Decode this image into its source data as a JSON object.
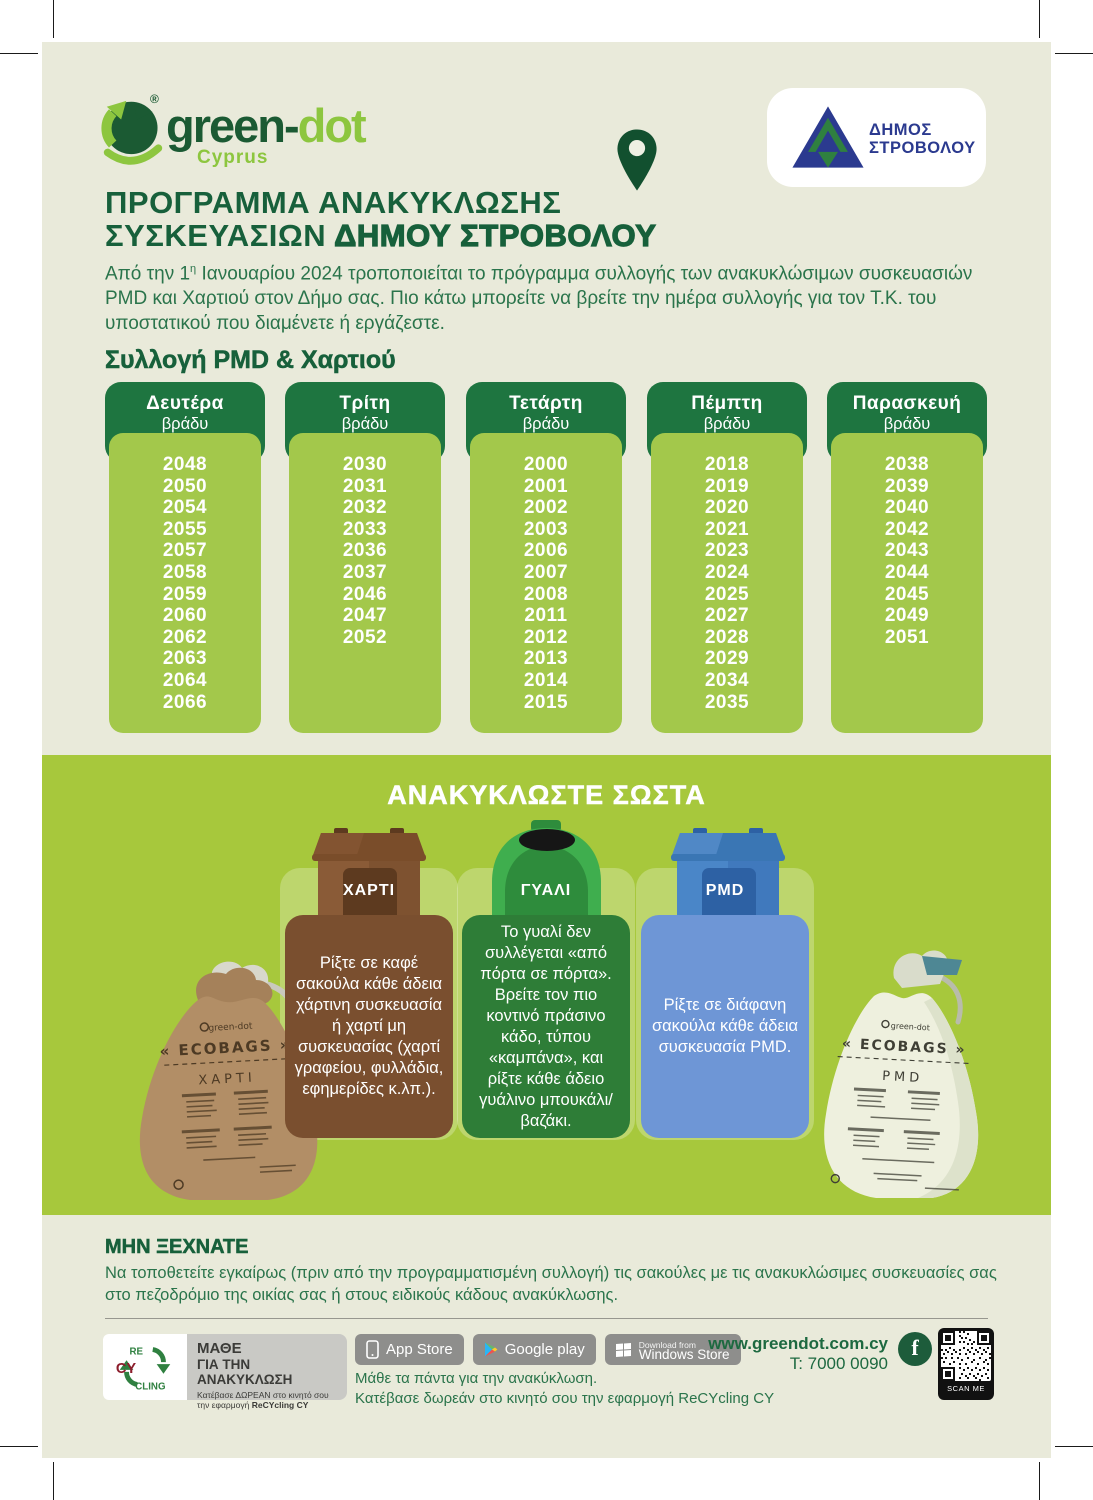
{
  "brand": {
    "word_dark": "green-",
    "word_light": "dot",
    "region": "Cyprus",
    "registered": "®"
  },
  "municipality": {
    "line1": "ΔΗΜΟΣ",
    "line2": "ΣΤΡΟΒΟΛΟΥ"
  },
  "header": {
    "title_line1": "ΠΡΟΓΡΑΜΜΑ ΑΝΑΚΥΚΛΩΣΗΣ",
    "title_line2_prefix": "ΣΥΣΚΕΥΑΣΙΩΝ ",
    "title_line2_bold": "ΔΗΜΟΥ ΣΤΡΟΒΟΛΟΥ",
    "intro_prefix": "Από την 1",
    "intro_sup": "η",
    "intro_rest": " Ιανουαρίου 2024 τροποποιείται το πρόγραμμα συλλογής των ανακυκλώσιμων συσκευασιών PMD και Χαρτιού στον Δήμο σας. Πιο κάτω μπορείτε να βρείτε την ημέρα συλλογής για τον Τ.Κ. του υποστατικού που διαμένετε ή εργάζεστε."
  },
  "schedule": {
    "heading": "Συλλογή PMD & Χαρτιού",
    "columns": [
      {
        "day": "Δευτέρα",
        "time": "βράδυ",
        "codes": [
          "2048",
          "2050",
          "2054",
          "2055",
          "2057",
          "2058",
          "2059",
          "2060",
          "2062",
          "2063",
          "2064",
          "2066"
        ]
      },
      {
        "day": "Τρίτη",
        "time": "βράδυ",
        "codes": [
          "2030",
          "2031",
          "2032",
          "2033",
          "2036",
          "2037",
          "2046",
          "2047",
          "2052"
        ]
      },
      {
        "day": "Τετάρτη",
        "time": "βράδυ",
        "codes": [
          "2000",
          "2001",
          "2002",
          "2003",
          "2006",
          "2007",
          "2008",
          "2011",
          "2012",
          "2013",
          "2014",
          "2015"
        ]
      },
      {
        "day": "Πέμπτη",
        "time": "βράδυ",
        "codes": [
          "2018",
          "2019",
          "2020",
          "2021",
          "2023",
          "2024",
          "2025",
          "2027",
          "2028",
          "2029",
          "2034",
          "2035"
        ]
      },
      {
        "day": "Παρασκευή",
        "time": "βράδυ",
        "codes": [
          "2038",
          "2039",
          "2040",
          "2042",
          "2043",
          "2044",
          "2045",
          "2049",
          "2051"
        ]
      }
    ]
  },
  "recycle": {
    "heading": "ΑΝΑΚΥΚΛΩΣΤΕ ΣΩΣΤΑ",
    "bins": [
      {
        "label": "ΧΑΡΤΙ",
        "text": "Ρίξτε σε καφέ σακούλα κάθε άδεια χάρτινη συσκευασία ή χαρτί μη συσκευασίας (χαρτί γραφείου, φυλλάδια, εφημερίδες κ.λπ.)."
      },
      {
        "label": "ΓΥΑΛΙ",
        "text": "Το γυαλί δεν συλλέγεται «από πόρτα σε πόρτα». Βρείτε τον πιο κοντινό πράσινο κάδο, τύπου «καμπάνα», και ρίξτε κάθε άδειο γυάλινο μπουκάλι/βαζάκι."
      },
      {
        "label": "PMD",
        "text": "Ρίξτε σε διάφανη σακούλα κάθε άδεια συσκευασία PMD."
      }
    ],
    "bags": [
      {
        "brand": "green-dot",
        "title": "« ECOBAGS »",
        "subtitle": "ΧΑΡΤΙ"
      },
      {
        "brand": "green-dot",
        "title": "« ECOBAGS »",
        "subtitle": "PMD"
      }
    ]
  },
  "reminder": {
    "heading": "ΜΗΝ ΞΕΧΝΑΤΕ",
    "text": "Να τοποθετείτε εγκαίρως (πριν από την προγραμματισμένη συλλογή) τις σακούλες με τις ανακυκλώσιμες συσκευασίες σας στο πεζοδρόμιο της οικίας σας ή στους ειδικούς κάδους ανακύκλωσης."
  },
  "footer": {
    "recycling_logo": {
      "re": "RE",
      "cy": "CY",
      "cling": "CLING"
    },
    "learn": {
      "line1": "ΜΑΘΕ",
      "line2": "ΓΙΑ ΤΗΝ ΑΝΑΚΥΚΛΩΣΗ",
      "sub1": "Κατέβασε ΔΩΡΕΑΝ στο κινητό σου",
      "sub2_prefix": "την εφαρμογή ",
      "sub2_bold": "ReCYcling CY"
    },
    "stores": [
      {
        "top": "",
        "label": "App Store"
      },
      {
        "top": "",
        "label": "Google play"
      },
      {
        "top": "Download from",
        "label": "Windows Store"
      }
    ],
    "app_line1": "Μάθε τα πάντα για την ανακύκλωση.",
    "app_line2": "Κατέβασε δωρεάν στο κινητό σου την εφαρμογή ReCYcling CY",
    "website": "www.greendot.com.cy",
    "phone": "T: 7000 0090",
    "facebook_label": "f",
    "scan_label": "SCAN ME"
  },
  "colors": {
    "accent_dark_green": "#17603b",
    "accent_light_green": "#8dc63f",
    "band_green": "#a7c83c",
    "header_green": "#1e7540",
    "cell_green": "#a3c84b",
    "paper_brown": "#7a4f2f",
    "glass_green": "#2e7d37",
    "pmd_blue": "#6e96d6"
  }
}
